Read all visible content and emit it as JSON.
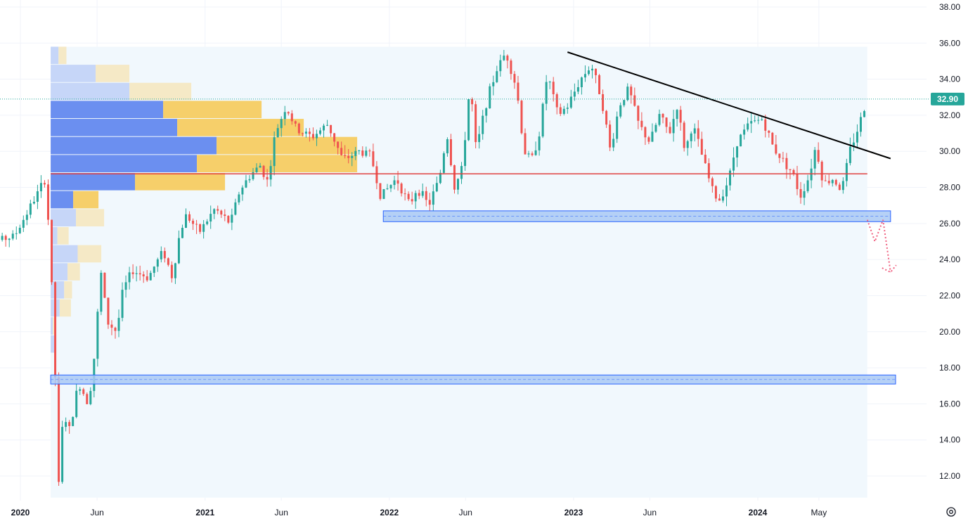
{
  "colors": {
    "up": "#26a69a",
    "down": "#ef5350",
    "grid": "#f0f3fa",
    "range_bg": "#f1f8fd",
    "vp_up_hi": "#6b8ff0",
    "vp_down_hi": "#f6cf6a",
    "vp_up_lo": "#c6d6f8",
    "vp_down_lo": "#f5e9c6",
    "zone_fill": "#a9c9f5",
    "zone_border": "#2962ff",
    "trendline": "#000000",
    "poc_line": "#e04040",
    "projection": "#f06080",
    "price_badge": "#26a69a"
  },
  "chart_data": {
    "type": "candlestick",
    "title": "",
    "ylim": [
      10.8,
      38.0
    ],
    "y_ticks": [
      "38.00",
      "36.00",
      "34.00",
      "32.00",
      "30.00",
      "28.00",
      "26.00",
      "24.00",
      "22.00",
      "20.00",
      "18.00",
      "16.00",
      "14.00",
      "12.00"
    ],
    "x_ticks": [
      {
        "label": "2020",
        "bold": true,
        "date": "2020-01-01"
      },
      {
        "label": "Jun",
        "bold": false,
        "date": "2020-06-01"
      },
      {
        "label": "2021",
        "bold": true,
        "date": "2021-01-01"
      },
      {
        "label": "Jun",
        "bold": false,
        "date": "2021-06-01"
      },
      {
        "label": "2022",
        "bold": true,
        "date": "2022-01-01"
      },
      {
        "label": "Jun",
        "bold": false,
        "date": "2022-06-01"
      },
      {
        "label": "2023",
        "bold": true,
        "date": "2023-01-01"
      },
      {
        "label": "Jun",
        "bold": false,
        "date": "2023-06-01"
      },
      {
        "label": "2024",
        "bold": true,
        "date": "2024-01-01"
      },
      {
        "label": "May",
        "bold": false,
        "date": "2024-05-01"
      }
    ],
    "last_price": "32.90",
    "price_path": [
      [
        "2019-10-01",
        24.7
      ],
      [
        "2019-12-20",
        25.3
      ],
      [
        "2020-02-20",
        28.5
      ],
      [
        "2020-03-01",
        24.0
      ],
      [
        "2020-03-10",
        17.5
      ],
      [
        "2020-03-17",
        11.5
      ],
      [
        "2020-03-26",
        15.5
      ],
      [
        "2020-04-08",
        14.5
      ],
      [
        "2020-04-25",
        17.2
      ],
      [
        "2020-05-15",
        16.0
      ],
      [
        "2020-05-28",
        19.0
      ],
      [
        "2020-06-08",
        23.4
      ],
      [
        "2020-06-22",
        20.5
      ],
      [
        "2020-07-10",
        20.0
      ],
      [
        "2020-07-22",
        22.3
      ],
      [
        "2020-08-10",
        23.4
      ],
      [
        "2020-09-10",
        23.0
      ],
      [
        "2020-10-10",
        24.5
      ],
      [
        "2020-10-28",
        23.0
      ],
      [
        "2020-11-12",
        25.5
      ],
      [
        "2020-11-25",
        26.5
      ],
      [
        "2020-12-20",
        25.5
      ],
      [
        "2021-01-20",
        26.8
      ],
      [
        "2021-02-20",
        26.0
      ],
      [
        "2021-03-10",
        27.8
      ],
      [
        "2021-04-01",
        28.7
      ],
      [
        "2021-04-20",
        29.2
      ],
      [
        "2021-05-05",
        28.3
      ],
      [
        "2021-05-20",
        31.0
      ],
      [
        "2021-06-10",
        32.5
      ],
      [
        "2021-07-01",
        31.2
      ],
      [
        "2021-08-01",
        30.8
      ],
      [
        "2021-09-01",
        31.5
      ],
      [
        "2021-10-01",
        29.5
      ],
      [
        "2021-11-01",
        30.0
      ],
      [
        "2021-11-25",
        29.8
      ],
      [
        "2021-12-15",
        27.5
      ],
      [
        "2022-01-15",
        28.5
      ],
      [
        "2022-02-10",
        27.0
      ],
      [
        "2022-02-25",
        28.0
      ],
      [
        "2022-03-20",
        27.0
      ],
      [
        "2022-04-10",
        28.5
      ],
      [
        "2022-04-25",
        31.0
      ],
      [
        "2022-05-10",
        28.0
      ],
      [
        "2022-05-25",
        29.0
      ],
      [
        "2022-06-10",
        33.8
      ],
      [
        "2022-06-22",
        30.0
      ],
      [
        "2022-07-10",
        32.5
      ],
      [
        "2022-08-01",
        34.5
      ],
      [
        "2022-08-20",
        35.5
      ],
      [
        "2022-09-10",
        33.5
      ],
      [
        "2022-09-25",
        30.0
      ],
      [
        "2022-10-10",
        29.5
      ],
      [
        "2022-10-25",
        31.0
      ],
      [
        "2022-11-10",
        34.3
      ],
      [
        "2022-12-01",
        32.0
      ],
      [
        "2022-12-20",
        32.5
      ],
      [
        "2023-01-15",
        34.0
      ],
      [
        "2023-02-05",
        34.8
      ],
      [
        "2023-02-25",
        33.0
      ],
      [
        "2023-03-15",
        30.0
      ],
      [
        "2023-04-01",
        32.5
      ],
      [
        "2023-04-20",
        33.5
      ],
      [
        "2023-05-10",
        31.5
      ],
      [
        "2023-06-01",
        30.5
      ],
      [
        "2023-06-20",
        32.0
      ],
      [
        "2023-07-10",
        31.0
      ],
      [
        "2023-07-25",
        32.5
      ],
      [
        "2023-08-10",
        30.0
      ],
      [
        "2023-08-25",
        31.5
      ],
      [
        "2023-09-10",
        30.0
      ],
      [
        "2023-10-01",
        28.0
      ],
      [
        "2023-10-15",
        27.2
      ],
      [
        "2023-11-05",
        28.5
      ],
      [
        "2023-11-20",
        30.5
      ],
      [
        "2023-12-15",
        31.5
      ],
      [
        "2024-01-10",
        31.8
      ],
      [
        "2024-02-01",
        30.2
      ],
      [
        "2024-02-20",
        29.5
      ],
      [
        "2024-03-10",
        28.8
      ],
      [
        "2024-03-25",
        27.5
      ],
      [
        "2024-04-10",
        28.5
      ],
      [
        "2024-04-25",
        30.3
      ],
      [
        "2024-05-10",
        28.2
      ],
      [
        "2024-05-30",
        28.5
      ],
      [
        "2024-06-15",
        27.8
      ],
      [
        "2024-07-01",
        30.0
      ],
      [
        "2024-07-20",
        31.5
      ],
      [
        "2024-08-05",
        32.9
      ]
    ],
    "volume_profile": {
      "date_start": "2020-03-01",
      "bins": [
        {
          "top": 35.8,
          "bottom": 34.8,
          "up": 1.4,
          "down": 1.4
        },
        {
          "top": 34.8,
          "bottom": 33.8,
          "up": 8.0,
          "down": 6.0
        },
        {
          "top": 33.8,
          "bottom": 32.8,
          "up": 14.0,
          "down": 11.0
        },
        {
          "top": 32.8,
          "bottom": 31.8,
          "up": 20.0,
          "down": 17.5
        },
        {
          "top": 31.8,
          "bottom": 30.8,
          "up": 22.5,
          "down": 22.5
        },
        {
          "top": 30.8,
          "bottom": 29.8,
          "up": 29.5,
          "down": 25.0
        },
        {
          "top": 29.8,
          "bottom": 28.8,
          "up": 26.0,
          "down": 28.5
        },
        {
          "top": 28.8,
          "bottom": 27.8,
          "up": 15.0,
          "down": 16.0
        },
        {
          "top": 27.8,
          "bottom": 26.8,
          "up": 4.0,
          "down": 4.5
        },
        {
          "top": 26.8,
          "bottom": 25.8,
          "up": 4.5,
          "down": 5.0
        },
        {
          "top": 25.8,
          "bottom": 24.8,
          "up": 1.2,
          "down": 2.0
        },
        {
          "top": 24.8,
          "bottom": 23.8,
          "up": 4.8,
          "down": 4.2
        },
        {
          "top": 23.8,
          "bottom": 22.8,
          "up": 3.0,
          "down": 2.2
        },
        {
          "top": 22.8,
          "bottom": 21.8,
          "up": 2.4,
          "down": 1.4
        },
        {
          "top": 21.8,
          "bottom": 20.8,
          "up": 1.6,
          "down": 2.0
        },
        {
          "top": 20.8,
          "bottom": 19.8,
          "up": 0.4,
          "down": 0.4
        },
        {
          "top": 19.8,
          "bottom": 18.8,
          "up": 1.0,
          "down": 0.0
        }
      ]
    },
    "drawings": {
      "range_box": {
        "date_start": "2020-03-01",
        "date_end": "2024-08-05",
        "top": 35.8,
        "bottom": 10.8
      },
      "poc_line": {
        "date_start": "2020-03-01",
        "date_end": "2024-08-05",
        "price": 28.75
      },
      "trendline": {
        "from": [
          "2022-12-20",
          35.5
        ],
        "to": [
          "2024-09-20",
          29.6
        ]
      },
      "zones": [
        {
          "date_start": "2021-12-20",
          "date_end": "2024-09-20",
          "top": 26.7,
          "bottom": 26.1
        },
        {
          "date_start": "2020-03-01",
          "date_end": "2024-09-30",
          "top": 17.6,
          "bottom": 17.1
        }
      ],
      "projection": [
        [
          "2024-08-05",
          26.2
        ],
        [
          "2024-08-20",
          25.0
        ],
        [
          "2024-09-05",
          26.2
        ],
        [
          "2024-09-20",
          23.3
        ]
      ]
    }
  }
}
